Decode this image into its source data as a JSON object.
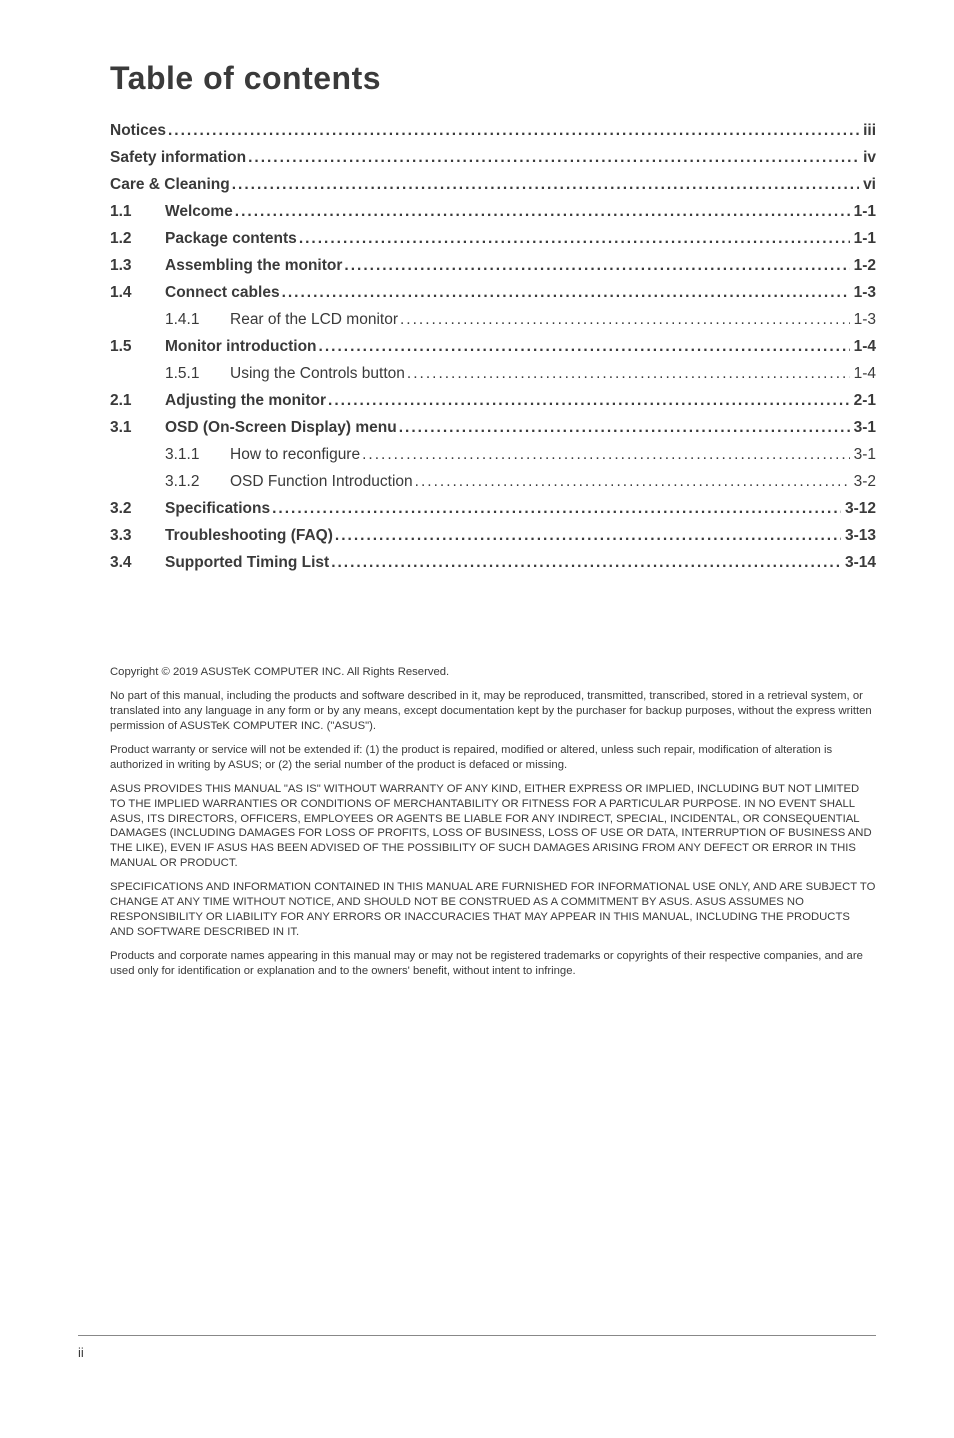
{
  "title": "Table of contents",
  "toc": {
    "top": [
      {
        "label": "Notices",
        "page": "iii"
      },
      {
        "label": "Safety information",
        "page": "iv"
      },
      {
        "label": "Care & Cleaning",
        "page": "vi"
      }
    ],
    "sections": [
      {
        "num": "1.1",
        "label": "Welcome",
        "page": "1-1",
        "subs": []
      },
      {
        "num": "1.2",
        "label": "Package contents",
        "page": "1-1",
        "subs": []
      },
      {
        "num": "1.3",
        "label": "Assembling the monitor",
        "page": "1-2",
        "subs": []
      },
      {
        "num": "1.4",
        "label": "Connect cables",
        "page": "1-3",
        "subs": [
          {
            "num": "1.4.1",
            "label": "Rear of the LCD monitor",
            "page": "1-3"
          }
        ]
      },
      {
        "num": "1.5",
        "label": "Monitor introduction",
        "page": "1-4",
        "subs": [
          {
            "num": "1.5.1",
            "label": "Using the Controls button ",
            "page": "1-4"
          }
        ]
      },
      {
        "num": "2.1",
        "label": "Adjusting the monitor",
        "page": "2-1",
        "subs": []
      },
      {
        "num": "3.1",
        "label": "OSD (On-Screen Display) menu",
        "page": "3-1",
        "subs": [
          {
            "num": "3.1.1",
            "label": "How to reconfigure",
            "page": "3-1"
          },
          {
            "num": "3.1.2",
            "label": "OSD Function Introduction",
            "page": "3-2"
          }
        ]
      },
      {
        "num": "3.2",
        "label": "Specifications",
        "page": "3-12",
        "subs": []
      },
      {
        "num": "3.3",
        "label": "Troubleshooting (FAQ)",
        "page": "3-13",
        "subs": []
      },
      {
        "num": "3.4",
        "label": "Supported Timing List",
        "page": "3-14",
        "subs": []
      }
    ]
  },
  "fineprint": [
    "Copyright © 2019 ASUSTeK COMPUTER INC. All Rights Reserved.",
    "No part of this manual, including the products and software described in it, may be reproduced, transmitted, transcribed, stored in a retrieval system, or translated into any language in any form or by any means, except documentation kept by the purchaser for backup purposes, without the express written permission of ASUSTeK COMPUTER INC. (\"ASUS\").",
    "Product warranty or service will not be extended if: (1) the product is repaired, modified or altered, unless such repair, modification of alteration is authorized in writing by ASUS; or (2) the serial number of the product is defaced or missing.",
    "ASUS PROVIDES THIS MANUAL \"AS IS\" WITHOUT WARRANTY OF ANY KIND, EITHER EXPRESS OR IMPLIED, INCLUDING BUT NOT LIMITED TO THE IMPLIED WARRANTIES OR CONDITIONS OF MERCHANTABILITY OR FITNESS FOR A PARTICULAR PURPOSE. IN NO EVENT SHALL ASUS, ITS DIRECTORS, OFFICERS, EMPLOYEES OR AGENTS BE LIABLE FOR ANY INDIRECT, SPECIAL, INCIDENTAL, OR CONSEQUENTIAL DAMAGES (INCLUDING DAMAGES FOR LOSS OF PROFITS, LOSS OF BUSINESS, LOSS OF USE OR DATA, INTERRUPTION OF BUSINESS AND THE LIKE), EVEN IF ASUS HAS BEEN ADVISED OF THE POSSIBILITY OF SUCH DAMAGES ARISING FROM ANY DEFECT OR ERROR IN THIS MANUAL OR PRODUCT.",
    "SPECIFICATIONS AND INFORMATION CONTAINED IN THIS MANUAL ARE FURNISHED FOR INFORMATIONAL USE ONLY, AND ARE SUBJECT TO CHANGE AT ANY TIME WITHOUT NOTICE, AND SHOULD NOT BE CONSTRUED AS A COMMITMENT BY ASUS. ASUS ASSUMES NO RESPONSIBILITY OR LIABILITY FOR ANY ERRORS OR INACCURACIES THAT MAY APPEAR IN THIS MANUAL, INCLUDING THE PRODUCTS AND SOFTWARE DESCRIBED IN IT.",
    "Products and corporate names appearing in this manual may or may not be registered trademarks or copyrights of their respective companies, and are used only for identification or explanation and to the owners' benefit, without intent to infringe."
  ],
  "footer_page": "ii"
}
